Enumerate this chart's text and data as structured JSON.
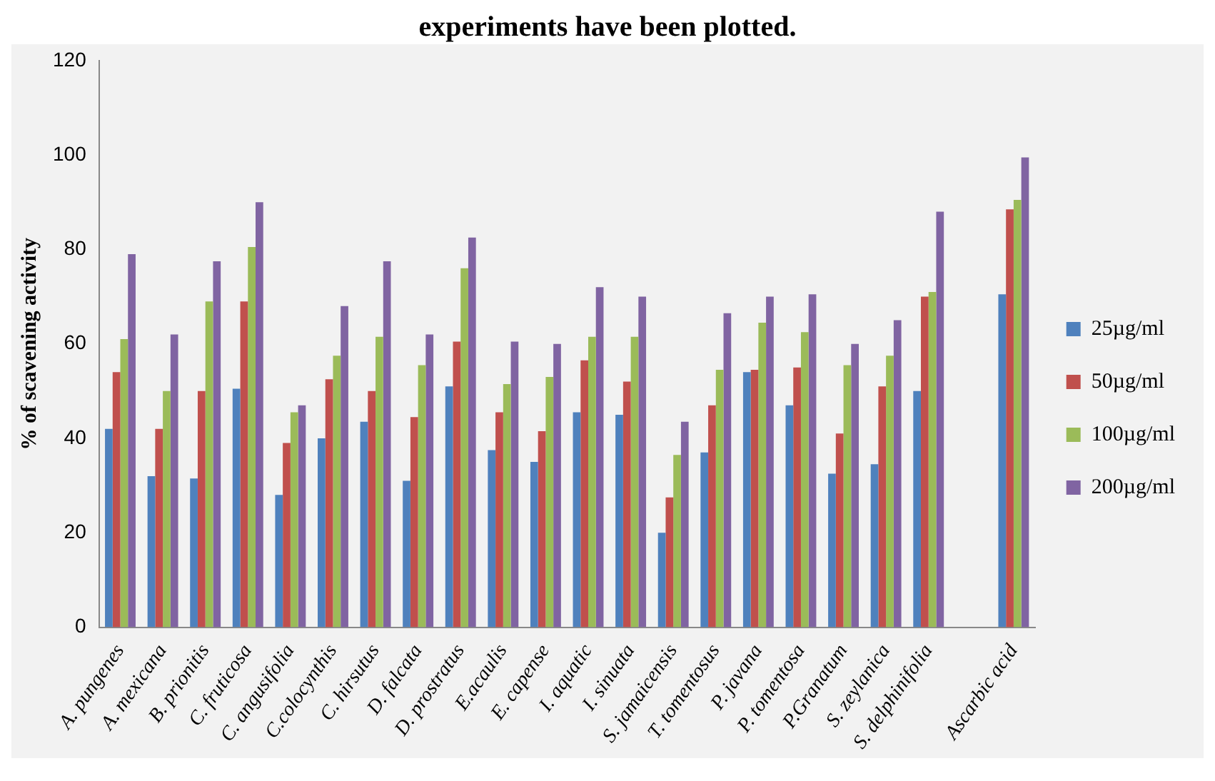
{
  "chart_data": {
    "type": "bar",
    "title": "experiments have been plotted.",
    "ylabel": "% of scavening activity",
    "categories": [
      "A. pungenes",
      "A. mexicana",
      "B. prionitis",
      "C. fruticosa",
      "C. angusifolia",
      "C.colocynthis",
      "C. hirsutus",
      "D. falcata",
      "D. prostratus",
      "E.acaulis",
      "E. capense",
      "I. aquatic",
      "I. sinuata",
      "S. jamaicensis",
      "T. tomentosus",
      "P. javana",
      "P. tomentosa",
      "P.Granatum",
      "S. zeylanica",
      "S. delphinifolia",
      null,
      "Ascarbic acid"
    ],
    "series": [
      {
        "name": "25µg/ml",
        "color": "#4f81bd",
        "values": [
          42,
          32,
          31.5,
          50.5,
          28,
          40,
          43.5,
          31,
          51,
          37.5,
          35,
          45.5,
          45,
          20,
          37,
          54,
          47,
          32.5,
          34.5,
          50,
          null,
          70.5
        ]
      },
      {
        "name": "50µg/ml",
        "color": "#c0504d",
        "values": [
          54,
          42,
          50,
          69,
          39,
          52.5,
          50,
          44.5,
          60.5,
          45.5,
          41.5,
          56.5,
          52,
          27.5,
          47,
          54.5,
          55,
          41,
          51,
          70,
          null,
          88.5
        ]
      },
      {
        "name": "100µg/ml",
        "color": "#9bbb59",
        "values": [
          61,
          50,
          69,
          80.5,
          45.5,
          57.5,
          61.5,
          55.5,
          76,
          51.5,
          53,
          61.5,
          61.5,
          36.5,
          54.5,
          64.5,
          62.5,
          55.5,
          57.5,
          71,
          null,
          90.5
        ]
      },
      {
        "name": "200µg/ml",
        "color": "#8064a2",
        "values": [
          79,
          62,
          77.5,
          90,
          47,
          68,
          77.5,
          62,
          82.5,
          60.5,
          60,
          72,
          70,
          43.5,
          66.5,
          70,
          70.5,
          60,
          65,
          88,
          null,
          99.5
        ]
      }
    ],
    "ylim": [
      0,
      120
    ],
    "yticks": [
      0,
      20,
      40,
      60,
      80,
      100,
      120
    ],
    "legend": "right"
  }
}
